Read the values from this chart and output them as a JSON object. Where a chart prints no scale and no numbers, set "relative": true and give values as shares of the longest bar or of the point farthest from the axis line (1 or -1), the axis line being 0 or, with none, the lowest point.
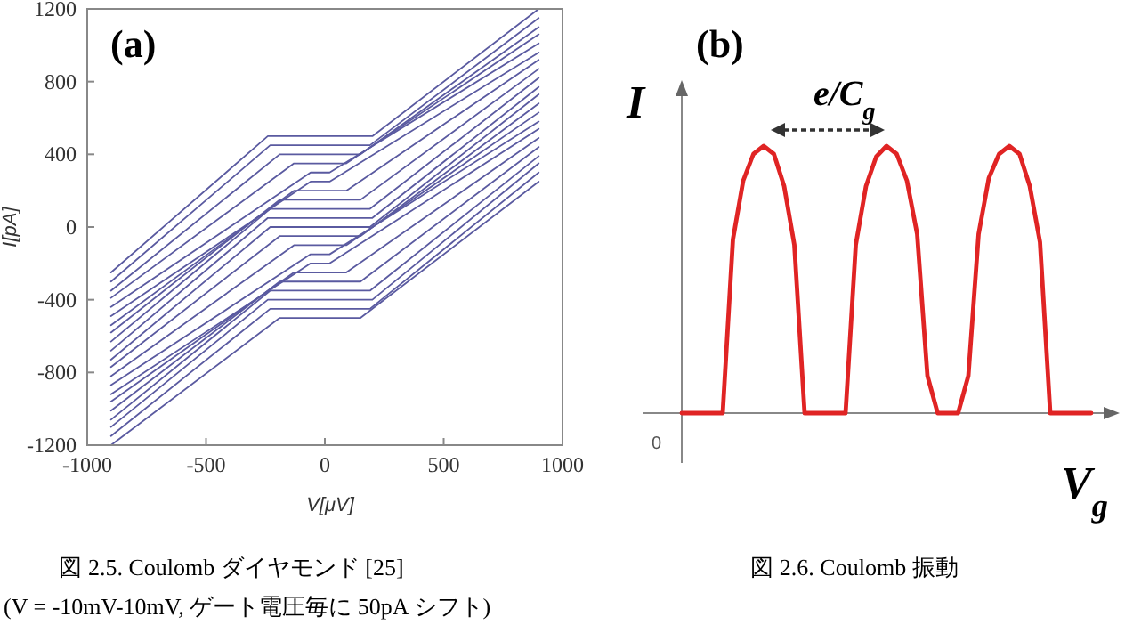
{
  "chart_data": [
    {
      "type": "line",
      "xlabel": "V[μV]",
      "ylabel": "I[pA]",
      "xlim": [
        -1000,
        1000
      ],
      "ylim": [
        -1200,
        1200
      ],
      "xticks": [
        -1000,
        -500,
        0,
        500,
        1000
      ],
      "yticks": [
        -1200,
        -800,
        -400,
        0,
        400,
        800,
        1200
      ],
      "annotations": [
        "(a)",
        "図 2.5. Coulomb ダイヤモンド  [25]",
        "(V = -10mV-10mV, ゲート電圧毎に 50pA シフト)"
      ],
      "series": [
        {
          "color": "#5a5aa0",
          "x": [
            -900,
            -240,
            200,
            900
          ],
          "values": [
            -250,
            500,
            500,
            1200
          ]
        },
        {
          "color": "#5a5aa0",
          "x": [
            -900,
            -230,
            190,
            900
          ],
          "values": [
            -300,
            450,
            450,
            1150
          ]
        },
        {
          "color": "#5a5aa0",
          "x": [
            -900,
            -190,
            150,
            900
          ],
          "values": [
            -350,
            400,
            400,
            1100
          ]
        },
        {
          "color": "#5a5aa0",
          "x": [
            -900,
            -130,
            90,
            900
          ],
          "values": [
            -390,
            350,
            350,
            1060
          ]
        },
        {
          "color": "#5a5aa0",
          "x": [
            -900,
            -60,
            20,
            900
          ],
          "values": [
            -440,
            300,
            300,
            1010
          ]
        },
        {
          "color": "#5a5aa0",
          "x": [
            -900,
            -60,
            20,
            900
          ],
          "values": [
            -490,
            250,
            250,
            960
          ]
        },
        {
          "color": "#5a5aa0",
          "x": [
            -900,
            -130,
            90,
            900
          ],
          "values": [
            -540,
            200,
            200,
            920
          ]
        },
        {
          "color": "#5a5aa0",
          "x": [
            -900,
            -190,
            150,
            900
          ],
          "values": [
            -580,
            150,
            150,
            870
          ]
        },
        {
          "color": "#5a5aa0",
          "x": [
            -900,
            -230,
            190,
            900
          ],
          "values": [
            -630,
            100,
            100,
            820
          ]
        },
        {
          "color": "#5a5aa0",
          "x": [
            -900,
            -240,
            200,
            900
          ],
          "values": [
            -680,
            50,
            50,
            770
          ]
        },
        {
          "color": "#5a5aa0",
          "x": [
            -900,
            -230,
            190,
            900
          ],
          "values": [
            -730,
            0,
            0,
            730
          ]
        },
        {
          "color": "#5a5aa0",
          "x": [
            -900,
            -190,
            150,
            900
          ],
          "values": [
            -770,
            -50,
            -50,
            680
          ]
        },
        {
          "color": "#5a5aa0",
          "x": [
            -900,
            -130,
            90,
            900
          ],
          "values": [
            -820,
            -100,
            -100,
            630
          ]
        },
        {
          "color": "#5a5aa0",
          "x": [
            -900,
            -60,
            20,
            900
          ],
          "values": [
            -870,
            -150,
            -150,
            580
          ]
        },
        {
          "color": "#5a5aa0",
          "x": [
            -900,
            -60,
            20,
            900
          ],
          "values": [
            -920,
            -200,
            -200,
            540
          ]
        },
        {
          "color": "#5a5aa0",
          "x": [
            -900,
            -130,
            90,
            900
          ],
          "values": [
            -960,
            -250,
            -250,
            490
          ]
        },
        {
          "color": "#5a5aa0",
          "x": [
            -900,
            -190,
            150,
            900
          ],
          "values": [
            -1010,
            -300,
            -300,
            440
          ]
        },
        {
          "color": "#5a5aa0",
          "x": [
            -900,
            -230,
            190,
            900
          ],
          "values": [
            -1060,
            -350,
            -350,
            390
          ]
        },
        {
          "color": "#5a5aa0",
          "x": [
            -900,
            -240,
            200,
            900
          ],
          "values": [
            -1100,
            -400,
            -400,
            350
          ]
        },
        {
          "color": "#5a5aa0",
          "x": [
            -900,
            -230,
            190,
            900
          ],
          "values": [
            -1150,
            -450,
            -450,
            300
          ]
        },
        {
          "color": "#5a5aa0",
          "x": [
            -900,
            -190,
            150,
            900
          ],
          "values": [
            -1200,
            -500,
            -500,
            250
          ]
        }
      ]
    },
    {
      "type": "line",
      "relative": true,
      "xlabel": "V$_{g}$",
      "ylabel": "I",
      "annotations": [
        "(b)",
        "e/C$_{g}$",
        "0",
        "図 2.6. Coulomb 振動"
      ],
      "categories": [
        null,
        null,
        null,
        null,
        null,
        null,
        null,
        null,
        null,
        null,
        null,
        null,
        null,
        null,
        null,
        null,
        null,
        null,
        null,
        null,
        null,
        null,
        null,
        null,
        null,
        null,
        null,
        null,
        null,
        null,
        null,
        null,
        null,
        null,
        null,
        null,
        null,
        null,
        null,
        null,
        null
      ],
      "series": [
        {
          "color": "#e02424",
          "values": [
            0,
            0,
            0,
            0,
            0,
            0.65,
            0.87,
            0.97,
            1,
            0.97,
            0.85,
            0.63,
            0,
            0,
            0,
            0,
            0,
            0.63,
            0.85,
            0.96,
            1,
            0.97,
            0.87,
            0.67,
            0.14,
            0,
            0,
            0,
            0.14,
            0.67,
            0.88,
            0.97,
            1,
            0.97,
            0.85,
            0.64,
            0,
            0,
            0,
            0,
            0
          ]
        }
      ]
    }
  ]
}
